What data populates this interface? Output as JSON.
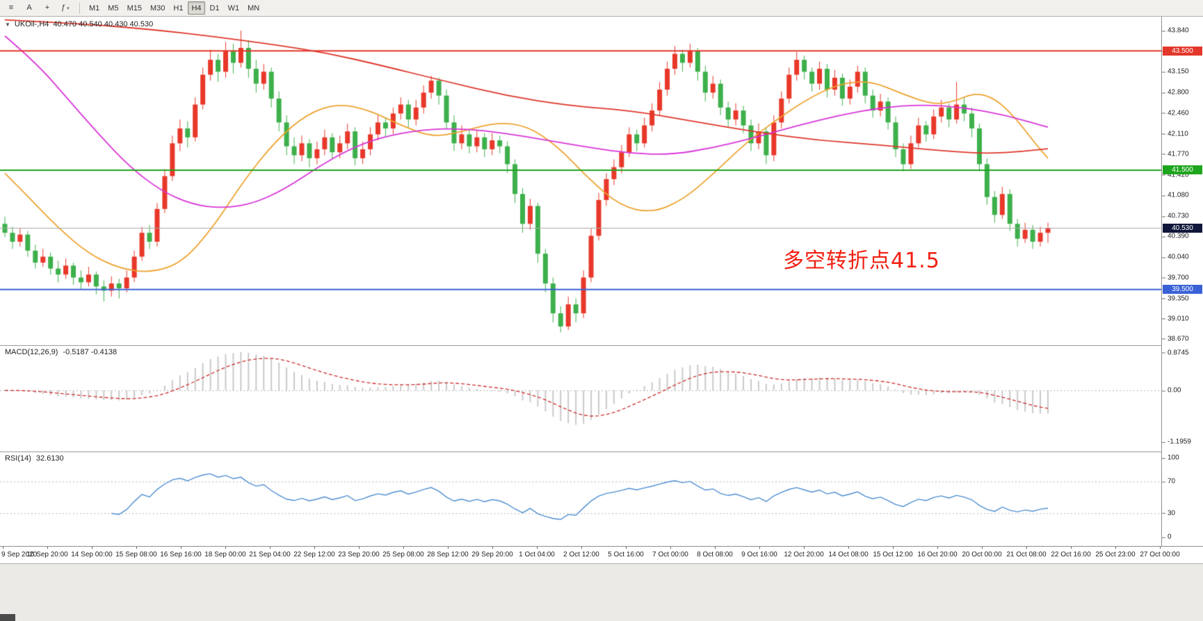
{
  "toolbar": {
    "buttons": [
      {
        "name": "chart-list",
        "glyph": "≡"
      },
      {
        "name": "text-tool",
        "glyph": "A"
      },
      {
        "name": "crosshair",
        "glyph": "+"
      },
      {
        "name": "indicators",
        "glyph": "ƒ",
        "arrow": "▾"
      }
    ],
    "timeframes": [
      {
        "label": "M1"
      },
      {
        "label": "M5"
      },
      {
        "label": "M15"
      },
      {
        "label": "M30"
      },
      {
        "label": "H1"
      },
      {
        "label": "H4",
        "active": true
      },
      {
        "label": "D1"
      },
      {
        "label": "W1"
      },
      {
        "label": "MN"
      }
    ]
  },
  "chart": {
    "collapse_arrow": "▼",
    "title": "UKOil-,H4",
    "ohlc_text": "40.470 40.540 40.430 40.530",
    "annotation": {
      "text": "多空转折点41.5",
      "color": "#f21d10"
    }
  },
  "macd_panel": {
    "label": "MACD(12,26,9)",
    "values": "-0.5187 -0.4138",
    "axis_labels": [
      "0.8745",
      "0.00",
      "-1.1959"
    ]
  },
  "rsi_panel": {
    "label": "RSI(14)",
    "value": "32.6130",
    "axis_labels": [
      "100",
      "70",
      "30",
      "0"
    ]
  },
  "chart_data": {
    "type": "candlestick",
    "symbol": "UKOil-",
    "timeframe": "H4",
    "current_ohlc": {
      "open": 40.47,
      "high": 40.54,
      "low": 40.43,
      "close": 40.53
    },
    "price_range": [
      38.6,
      44.05
    ],
    "y_axis_ticks": [
      "43.840",
      "43.500",
      "43.150",
      "42.800",
      "42.460",
      "42.110",
      "41.770",
      "41.420",
      "41.080",
      "40.730",
      "40.390",
      "40.040",
      "39.700",
      "39.350",
      "39.010",
      "38.670"
    ],
    "x_labels": [
      "9 Sep 2020",
      "10 Sep 20:00",
      "14 Sep 00:00",
      "15 Sep 08:00",
      "16 Sep 16:00",
      "18 Sep 00:00",
      "21 Sep 04:00",
      "22 Sep 12:00",
      "23 Sep 20:00",
      "25 Sep 08:00",
      "28 Sep 12:00",
      "29 Sep 20:00",
      "1 Oct 04:00",
      "2 Oct 12:00",
      "5 Oct 16:00",
      "7 Oct 00:00",
      "8 Oct 08:00",
      "9 Oct 16:00",
      "12 Oct 20:00",
      "14 Oct 08:00",
      "15 Oct 12:00",
      "16 Oct 20:00",
      "20 Oct 00:00",
      "21 Oct 08:00",
      "22 Oct 16:00",
      "25 Oct 23:00",
      "27 Oct 00:00"
    ],
    "horizontal_lines": [
      {
        "label": "43.500",
        "price": 43.5,
        "color": "#e3372b"
      },
      {
        "label": "41.500",
        "price": 41.5,
        "color": "#1ea51e"
      },
      {
        "label": "39.500",
        "price": 39.5,
        "color": "#3a62d6"
      }
    ],
    "current_price_line": {
      "label": "40.530",
      "price": 40.53,
      "color": "#a9a9a9",
      "label_bg": "#10173a"
    },
    "colors": {
      "up": "#e8382a",
      "down": "#3db04b",
      "ma_fast_orange": "#eca32f",
      "ma_mid_magenta": "#d836d8",
      "ma_slow_red": "#de372b",
      "macd_hist": "#c9c9c9",
      "macd_signal": "#cc2a2a",
      "rsi_line": "#4d8ed0",
      "level_dotted": "#b5b5b5"
    },
    "candles": [
      [
        40.6,
        40.72,
        40.38,
        40.45
      ],
      [
        40.45,
        40.55,
        40.18,
        40.3
      ],
      [
        40.3,
        40.52,
        40.22,
        40.42
      ],
      [
        40.42,
        40.48,
        40.05,
        40.15
      ],
      [
        40.15,
        40.25,
        39.85,
        39.95
      ],
      [
        39.95,
        40.18,
        39.88,
        40.05
      ],
      [
        40.05,
        40.12,
        39.75,
        39.85
      ],
      [
        39.85,
        39.98,
        39.62,
        39.75
      ],
      [
        39.75,
        40.02,
        39.68,
        39.9
      ],
      [
        39.9,
        39.95,
        39.58,
        39.7
      ],
      [
        39.7,
        39.82,
        39.5,
        39.62
      ],
      [
        39.62,
        39.88,
        39.55,
        39.75
      ],
      [
        39.75,
        39.8,
        39.42,
        39.55
      ],
      [
        39.55,
        39.65,
        39.3,
        39.48
      ],
      [
        39.48,
        39.72,
        39.38,
        39.6
      ],
      [
        39.6,
        39.68,
        39.35,
        39.52
      ],
      [
        39.52,
        39.82,
        39.45,
        39.7
      ],
      [
        39.7,
        40.15,
        39.62,
        40.05
      ],
      [
        40.05,
        40.55,
        39.98,
        40.45
      ],
      [
        40.45,
        40.58,
        40.18,
        40.3
      ],
      [
        40.3,
        40.95,
        40.22,
        40.85
      ],
      [
        40.85,
        41.52,
        40.78,
        41.4
      ],
      [
        41.4,
        42.08,
        41.32,
        41.95
      ],
      [
        41.95,
        42.35,
        41.82,
        42.2
      ],
      [
        42.2,
        42.32,
        41.88,
        42.05
      ],
      [
        42.05,
        42.72,
        41.98,
        42.6
      ],
      [
        42.6,
        43.22,
        42.52,
        43.1
      ],
      [
        43.1,
        43.52,
        43.0,
        43.35
      ],
      [
        43.35,
        43.45,
        42.98,
        43.15
      ],
      [
        43.15,
        43.65,
        43.05,
        43.5
      ],
      [
        43.5,
        43.62,
        43.12,
        43.3
      ],
      [
        43.3,
        43.84,
        43.22,
        43.55
      ],
      [
        43.55,
        43.68,
        43.05,
        43.2
      ],
      [
        43.2,
        43.35,
        42.8,
        42.95
      ],
      [
        42.95,
        43.28,
        42.85,
        43.15
      ],
      [
        43.15,
        43.22,
        42.55,
        42.7
      ],
      [
        42.7,
        42.82,
        42.15,
        42.3
      ],
      [
        42.3,
        42.42,
        41.75,
        41.9
      ],
      [
        41.9,
        42.05,
        41.6,
        41.75
      ],
      [
        41.75,
        42.08,
        41.65,
        41.95
      ],
      [
        41.95,
        42.02,
        41.55,
        41.7
      ],
      [
        41.7,
        41.98,
        41.6,
        41.85
      ],
      [
        41.85,
        42.18,
        41.75,
        42.05
      ],
      [
        42.05,
        42.12,
        41.68,
        41.8
      ],
      [
        41.8,
        42.08,
        41.7,
        41.95
      ],
      [
        41.95,
        42.28,
        41.85,
        42.15
      ],
      [
        42.15,
        42.22,
        41.58,
        41.7
      ],
      [
        41.7,
        41.98,
        41.6,
        41.85
      ],
      [
        41.85,
        42.22,
        41.75,
        42.1
      ],
      [
        42.1,
        42.42,
        42.0,
        42.3
      ],
      [
        42.3,
        42.38,
        42.05,
        42.2
      ],
      [
        42.2,
        42.55,
        42.1,
        42.45
      ],
      [
        42.45,
        42.72,
        42.35,
        42.6
      ],
      [
        42.6,
        42.68,
        42.22,
        42.35
      ],
      [
        42.35,
        42.68,
        42.25,
        42.55
      ],
      [
        42.55,
        42.92,
        42.45,
        42.8
      ],
      [
        42.8,
        43.08,
        42.7,
        43.0
      ],
      [
        43.0,
        43.05,
        42.6,
        42.75
      ],
      [
        42.75,
        42.85,
        42.18,
        42.3
      ],
      [
        42.3,
        42.42,
        41.82,
        41.95
      ],
      [
        41.95,
        42.25,
        41.85,
        42.1
      ],
      [
        42.1,
        42.18,
        41.78,
        41.9
      ],
      [
        41.9,
        42.18,
        41.8,
        42.05
      ],
      [
        42.05,
        42.12,
        41.72,
        41.85
      ],
      [
        41.85,
        42.12,
        41.75,
        42.0
      ],
      [
        42.0,
        42.08,
        41.78,
        41.9
      ],
      [
        41.9,
        41.98,
        41.45,
        41.6
      ],
      [
        41.6,
        41.68,
        40.95,
        41.1
      ],
      [
        41.1,
        41.2,
        40.45,
        40.6
      ],
      [
        40.6,
        41.02,
        40.5,
        40.9
      ],
      [
        40.9,
        40.95,
        39.95,
        40.1
      ],
      [
        40.1,
        40.18,
        39.45,
        39.6
      ],
      [
        39.6,
        39.7,
        38.95,
        39.1
      ],
      [
        39.1,
        39.22,
        38.78,
        38.88
      ],
      [
        38.88,
        39.38,
        38.82,
        39.25
      ],
      [
        39.25,
        39.35,
        38.95,
        39.1
      ],
      [
        39.1,
        39.82,
        39.02,
        39.7
      ],
      [
        39.7,
        40.52,
        39.62,
        40.4
      ],
      [
        40.4,
        41.12,
        40.32,
        41.0
      ],
      [
        41.0,
        41.45,
        40.9,
        41.35
      ],
      [
        41.35,
        41.68,
        41.25,
        41.55
      ],
      [
        41.55,
        41.92,
        41.45,
        41.8
      ],
      [
        41.8,
        42.22,
        41.72,
        42.1
      ],
      [
        42.1,
        42.18,
        41.82,
        41.95
      ],
      [
        41.95,
        42.38,
        41.88,
        42.25
      ],
      [
        42.25,
        42.62,
        42.15,
        42.5
      ],
      [
        42.5,
        42.98,
        42.42,
        42.85
      ],
      [
        42.85,
        43.32,
        42.75,
        43.2
      ],
      [
        43.2,
        43.58,
        43.1,
        43.45
      ],
      [
        43.45,
        43.52,
        43.15,
        43.3
      ],
      [
        43.3,
        43.62,
        43.22,
        43.5
      ],
      [
        43.5,
        43.55,
        43.0,
        43.15
      ],
      [
        43.15,
        43.25,
        42.65,
        42.8
      ],
      [
        42.8,
        43.08,
        42.7,
        42.95
      ],
      [
        42.95,
        43.02,
        42.42,
        42.55
      ],
      [
        42.55,
        42.65,
        42.22,
        42.35
      ],
      [
        42.35,
        42.62,
        42.25,
        42.5
      ],
      [
        42.5,
        42.58,
        42.12,
        42.25
      ],
      [
        42.25,
        42.35,
        41.82,
        41.95
      ],
      [
        41.95,
        42.28,
        41.85,
        42.15
      ],
      [
        42.15,
        42.22,
        41.6,
        41.75
      ],
      [
        41.75,
        42.42,
        41.65,
        42.3
      ],
      [
        42.3,
        42.82,
        42.2,
        42.7
      ],
      [
        42.7,
        43.22,
        42.62,
        43.1
      ],
      [
        43.1,
        43.48,
        43.0,
        43.35
      ],
      [
        43.35,
        43.42,
        43.02,
        43.15
      ],
      [
        43.15,
        43.22,
        42.82,
        42.95
      ],
      [
        42.95,
        43.32,
        42.85,
        43.2
      ],
      [
        43.2,
        43.28,
        42.72,
        42.85
      ],
      [
        42.85,
        43.18,
        42.75,
        43.05
      ],
      [
        43.05,
        43.12,
        42.58,
        42.7
      ],
      [
        42.7,
        43.02,
        42.6,
        42.9
      ],
      [
        42.9,
        43.25,
        42.8,
        43.15
      ],
      [
        43.15,
        43.22,
        42.62,
        42.75
      ],
      [
        42.75,
        42.85,
        42.38,
        42.5
      ],
      [
        42.5,
        42.78,
        42.4,
        42.65
      ],
      [
        42.65,
        42.72,
        42.18,
        42.3
      ],
      [
        42.3,
        42.4,
        41.72,
        41.85
      ],
      [
        41.85,
        41.95,
        41.48,
        41.6
      ],
      [
        41.6,
        42.08,
        41.52,
        41.95
      ],
      [
        41.95,
        42.38,
        41.88,
        42.25
      ],
      [
        42.25,
        42.32,
        41.98,
        42.1
      ],
      [
        42.1,
        42.52,
        42.02,
        42.4
      ],
      [
        42.4,
        42.68,
        42.3,
        42.55
      ],
      [
        42.55,
        42.62,
        42.22,
        42.35
      ],
      [
        42.35,
        42.98,
        42.28,
        42.6
      ],
      [
        42.6,
        42.72,
        42.32,
        42.45
      ],
      [
        42.45,
        42.55,
        42.05,
        42.2
      ],
      [
        42.2,
        42.28,
        41.48,
        41.6
      ],
      [
        41.6,
        41.7,
        40.92,
        41.05
      ],
      [
        41.05,
        41.15,
        40.62,
        40.75
      ],
      [
        40.75,
        41.22,
        40.68,
        41.1
      ],
      [
        41.1,
        41.18,
        40.48,
        40.6
      ],
      [
        40.6,
        40.68,
        40.22,
        40.35
      ],
      [
        40.35,
        40.62,
        40.28,
        40.5
      ],
      [
        40.5,
        40.58,
        40.18,
        40.3
      ],
      [
        40.3,
        40.55,
        40.22,
        40.45
      ],
      [
        40.45,
        40.62,
        40.28,
        40.53
      ]
    ],
    "moving_averages": [
      {
        "name": "ma-fast",
        "color": "#eca32f",
        "points": [
          [
            0,
            41.45
          ],
          [
            0.02,
            41.1
          ],
          [
            0.05,
            40.55
          ],
          [
            0.08,
            40.1
          ],
          [
            0.11,
            39.85
          ],
          [
            0.14,
            39.78
          ],
          [
            0.17,
            39.95
          ],
          [
            0.2,
            40.55
          ],
          [
            0.23,
            41.35
          ],
          [
            0.26,
            42.0
          ],
          [
            0.29,
            42.45
          ],
          [
            0.32,
            42.62
          ],
          [
            0.35,
            42.5
          ],
          [
            0.38,
            42.25
          ],
          [
            0.41,
            42.05
          ],
          [
            0.44,
            42.15
          ],
          [
            0.47,
            42.3
          ],
          [
            0.5,
            42.25
          ],
          [
            0.53,
            41.9
          ],
          [
            0.56,
            41.35
          ],
          [
            0.59,
            40.9
          ],
          [
            0.62,
            40.78
          ],
          [
            0.65,
            41.0
          ],
          [
            0.68,
            41.45
          ],
          [
            0.71,
            41.95
          ],
          [
            0.74,
            42.35
          ],
          [
            0.77,
            42.7
          ],
          [
            0.8,
            42.95
          ],
          [
            0.83,
            43.0
          ],
          [
            0.86,
            42.78
          ],
          [
            0.89,
            42.6
          ],
          [
            0.91,
            42.65
          ],
          [
            0.93,
            42.8
          ],
          [
            0.95,
            42.7
          ],
          [
            0.97,
            42.35
          ],
          [
            0.99,
            41.9
          ],
          [
            1,
            41.7
          ]
        ]
      },
      {
        "name": "ma-mid",
        "color": "#d836d8",
        "points": [
          [
            0,
            43.75
          ],
          [
            0.03,
            43.3
          ],
          [
            0.06,
            42.7
          ],
          [
            0.09,
            42.1
          ],
          [
            0.12,
            41.55
          ],
          [
            0.15,
            41.15
          ],
          [
            0.18,
            40.92
          ],
          [
            0.21,
            40.86
          ],
          [
            0.24,
            40.95
          ],
          [
            0.27,
            41.2
          ],
          [
            0.3,
            41.55
          ],
          [
            0.33,
            41.85
          ],
          [
            0.36,
            42.05
          ],
          [
            0.4,
            42.18
          ],
          [
            0.44,
            42.2
          ],
          [
            0.48,
            42.12
          ],
          [
            0.52,
            42.0
          ],
          [
            0.56,
            41.88
          ],
          [
            0.6,
            41.78
          ],
          [
            0.64,
            41.76
          ],
          [
            0.68,
            41.88
          ],
          [
            0.72,
            42.05
          ],
          [
            0.76,
            42.25
          ],
          [
            0.8,
            42.42
          ],
          [
            0.84,
            42.55
          ],
          [
            0.88,
            42.6
          ],
          [
            0.92,
            42.55
          ],
          [
            0.96,
            42.42
          ],
          [
            1,
            42.22
          ]
        ]
      },
      {
        "name": "ma-slow",
        "color": "#de372b",
        "points": [
          [
            0,
            44.02
          ],
          [
            0.07,
            43.96
          ],
          [
            0.14,
            43.86
          ],
          [
            0.2,
            43.74
          ],
          [
            0.26,
            43.6
          ],
          [
            0.31,
            43.46
          ],
          [
            0.36,
            43.26
          ],
          [
            0.42,
            43.0
          ],
          [
            0.48,
            42.75
          ],
          [
            0.54,
            42.58
          ],
          [
            0.6,
            42.5
          ],
          [
            0.66,
            42.32
          ],
          [
            0.72,
            42.14
          ],
          [
            0.78,
            42.0
          ],
          [
            0.84,
            41.92
          ],
          [
            0.9,
            41.82
          ],
          [
            0.95,
            41.77
          ],
          [
            1,
            41.86
          ]
        ]
      }
    ],
    "macd": {
      "params": [
        12,
        26,
        9
      ],
      "last_values": [
        -0.5187,
        -0.4138
      ],
      "axis_range": [
        -1.1959,
        0.8745
      ],
      "derived_from_candles": true
    },
    "rsi": {
      "period": 14,
      "last_value": 32.613,
      "levels": [
        70,
        30
      ],
      "axis_range": [
        0,
        100
      ],
      "derived_from_candles": true
    }
  }
}
